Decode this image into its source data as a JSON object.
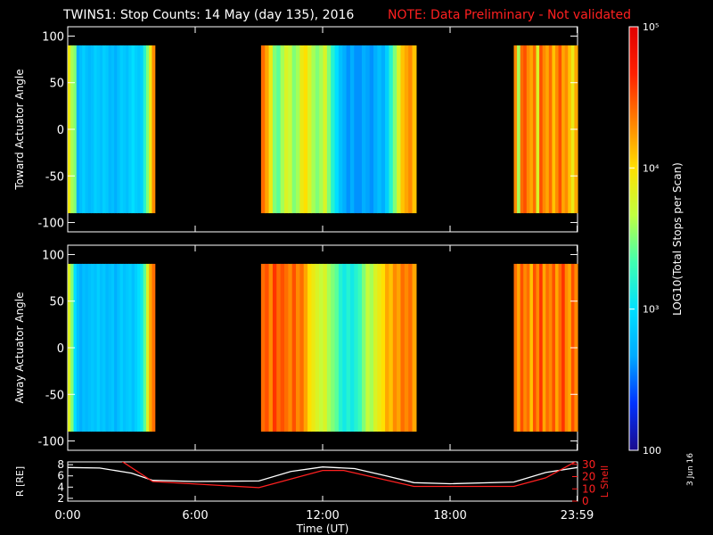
{
  "header": {
    "title": "TWINS1: Stop Counts: 14 May (day 135), 2016",
    "note": "NOTE: Data Preliminary - Not validated"
  },
  "footer": {
    "date_stamp": "3 Jun 16"
  },
  "colorbar": {
    "label": "LOG10(Total Stops per Scan)",
    "ticks": [
      "100",
      "10³",
      "10⁴",
      "10⁵"
    ],
    "range": [
      2,
      5
    ],
    "colors": [
      "#1a0a8c",
      "#0033ff",
      "#00aaff",
      "#00e0ff",
      "#40ffb0",
      "#c0ff40",
      "#ffe000",
      "#ff8000",
      "#ff2000",
      "#e00000"
    ]
  },
  "chart_data": [
    {
      "type": "heatmap",
      "ylabel": "Toward Actuator Angle",
      "ylim": [
        -110,
        110
      ],
      "yticks": [
        100,
        50,
        0,
        -50,
        -100
      ],
      "xlim": [
        0,
        24
      ],
      "angle_range": [
        -90,
        90
      ],
      "blocks": [
        {
          "t0": 0.0,
          "t1": 4.1,
          "log_counts": [
            3.9,
            3.6,
            3.5,
            2.7,
            2.8,
            2.9,
            2.8,
            2.75,
            2.8,
            2.9,
            2.85,
            2.8,
            2.9,
            2.85,
            2.75,
            2.8,
            2.7,
            2.8,
            2.9,
            2.85,
            2.8,
            2.9,
            3.0,
            2.9,
            2.85,
            2.9,
            3.2,
            3.5,
            3.9,
            4.3
          ]
        },
        {
          "t0": 9.1,
          "t1": 16.4,
          "log_counts": [
            4.4,
            4.2,
            3.9,
            3.5,
            3.4,
            3.6,
            3.8,
            3.7,
            3.5,
            3.6,
            3.9,
            4.0,
            3.8,
            3.6,
            3.5,
            3.6,
            3.8,
            3.5,
            3.2,
            3.0,
            2.8,
            2.7,
            2.6,
            2.7,
            2.6,
            2.6,
            2.7,
            2.65,
            2.6,
            2.7,
            2.8,
            2.7,
            2.9,
            3.2,
            3.5,
            3.8,
            4.1,
            4.2,
            4.3,
            4.1
          ]
        },
        {
          "t0": 21.0,
          "t1": 24.0,
          "log_counts": [
            4.3,
            3.6,
            4.4,
            4.5,
            4.3,
            4.2,
            4.4,
            3.8,
            4.5,
            4.3,
            4.2,
            4.4,
            4.1,
            4.3,
            4.5,
            4.2,
            4.3,
            4.1,
            3.9,
            4.2
          ]
        }
      ]
    },
    {
      "type": "heatmap",
      "ylabel": "Away Actuator Angle",
      "ylim": [
        -110,
        110
      ],
      "yticks": [
        100,
        50,
        0,
        -50,
        -100
      ],
      "xlim": [
        0,
        24
      ],
      "angle_range": [
        -90,
        90
      ],
      "blocks": [
        {
          "t0": 0.0,
          "t1": 4.1,
          "log_counts": [
            3.8,
            3.5,
            3.0,
            2.8,
            2.7,
            2.8,
            2.75,
            2.8,
            2.85,
            2.8,
            2.9,
            2.8,
            2.85,
            2.75,
            2.8,
            2.85,
            2.7,
            2.8,
            2.9,
            2.8,
            2.85,
            2.9,
            2.8,
            2.9,
            3.0,
            3.1,
            3.4,
            3.8,
            4.2,
            4.4
          ]
        },
        {
          "t0": 9.1,
          "t1": 16.4,
          "log_counts": [
            4.4,
            4.5,
            4.3,
            4.6,
            4.4,
            4.5,
            4.4,
            4.3,
            4.5,
            4.3,
            4.4,
            4.2,
            4.0,
            3.9,
            3.8,
            3.7,
            3.8,
            3.6,
            3.5,
            3.4,
            3.2,
            3.1,
            3.2,
            3.1,
            3.2,
            3.3,
            3.5,
            3.7,
            3.6,
            3.8,
            3.9,
            4.0,
            4.2,
            4.1,
            4.3,
            4.2,
            4.4,
            4.3,
            4.4,
            4.2
          ]
        },
        {
          "t0": 21.0,
          "t1": 24.0,
          "log_counts": [
            4.4,
            4.2,
            4.5,
            4.3,
            4.4,
            4.1,
            4.5,
            4.3,
            4.6,
            4.2,
            4.4,
            4.3,
            4.5,
            4.2,
            4.4,
            4.6,
            4.3,
            4.2,
            4.5,
            4.3
          ]
        }
      ]
    },
    {
      "type": "line",
      "xlabel": "Time (UT)",
      "x_tick_labels": [
        "0:00",
        "6:00",
        "12:00",
        "18:00",
        "23:59"
      ],
      "x_ticks": [
        0,
        6,
        12,
        18,
        23.98
      ],
      "xlim": [
        0,
        24
      ],
      "ylabel_left": "R [RE]",
      "ylabel_right": "L Shell",
      "left_ylim": [
        1.5,
        8.5
      ],
      "left_yticks": [
        2,
        4,
        6,
        8
      ],
      "right_ylim": [
        0,
        32
      ],
      "right_yticks": [
        0,
        10,
        20,
        30
      ],
      "series": [
        {
          "axis": "left",
          "color": "#ffffff",
          "x": [
            0,
            1.5,
            3,
            4,
            6,
            9,
            10.5,
            12,
            13.5,
            15,
            16.3,
            18,
            21,
            22.5,
            24
          ],
          "y": [
            7.5,
            7.4,
            6.5,
            5.2,
            5.0,
            5.1,
            6.8,
            7.6,
            7.3,
            6.0,
            4.8,
            4.6,
            4.9,
            6.6,
            7.5
          ]
        },
        {
          "axis": "right",
          "color": "#ff2020",
          "x": [
            2.5,
            4,
            9,
            12,
            13,
            16.3,
            21,
            22.5,
            24
          ],
          "y": [
            33,
            16,
            11,
            25,
            25,
            12,
            12,
            19,
            33
          ]
        }
      ]
    }
  ]
}
